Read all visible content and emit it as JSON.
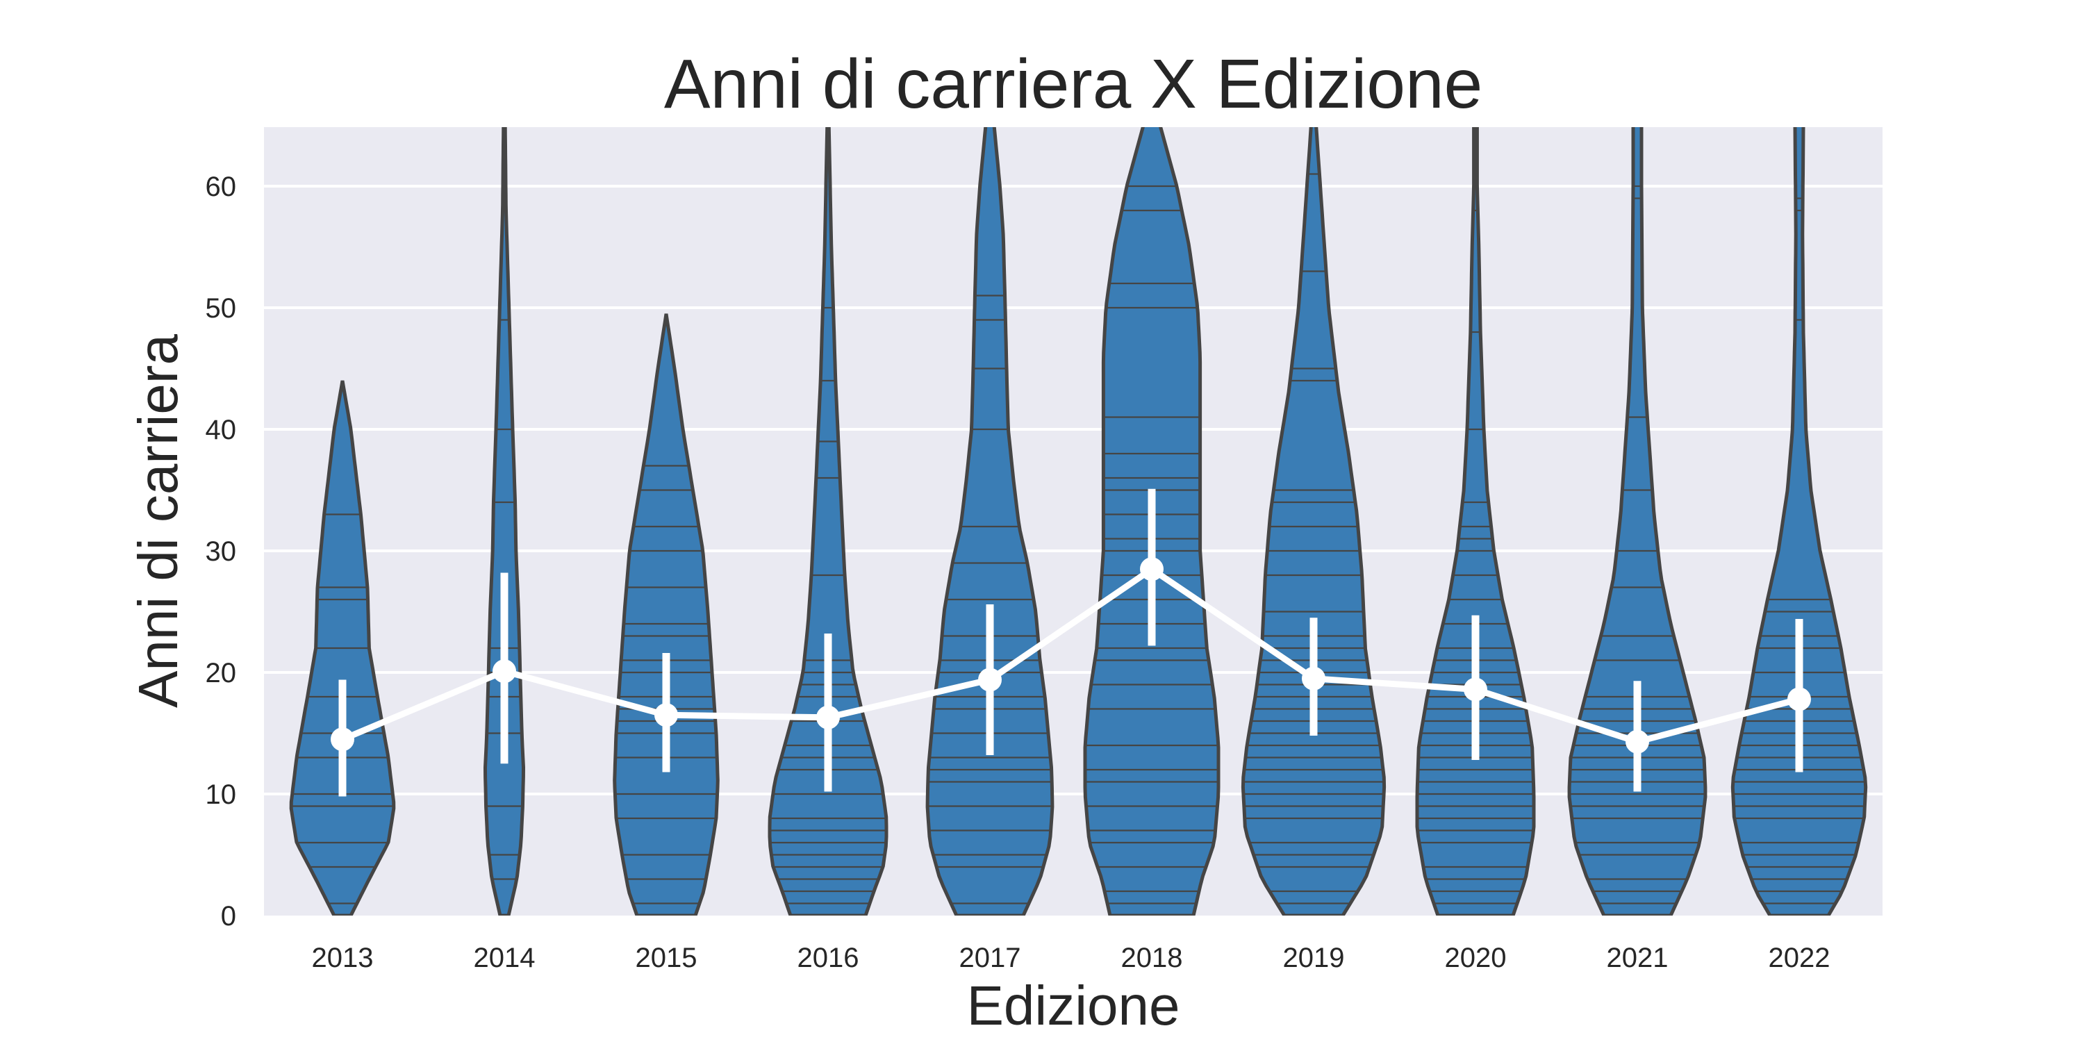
{
  "chart_data": {
    "type": "violin",
    "title": "Anni di carriera X Edizione",
    "xlabel": "Edizione",
    "ylabel": "Anni di carriera",
    "categories": [
      "2013",
      "2014",
      "2015",
      "2016",
      "2017",
      "2018",
      "2019",
      "2020",
      "2021",
      "2022"
    ],
    "ylim": [
      0,
      65
    ],
    "yticks": [
      0,
      10,
      20,
      30,
      40,
      50,
      60
    ],
    "grid": true,
    "colors": {
      "background": "#eaeaf2",
      "violin": "#3a7db5",
      "outline": "#454545",
      "mean": "#ffffff"
    },
    "violins": [
      {
        "max": 44,
        "profile": [
          [
            0,
            0.1
          ],
          [
            3,
            0.32
          ],
          [
            6,
            0.55
          ],
          [
            9,
            0.62
          ],
          [
            13,
            0.55
          ],
          [
            18,
            0.42
          ],
          [
            22,
            0.32
          ],
          [
            27,
            0.3
          ],
          [
            33,
            0.22
          ],
          [
            40,
            0.1
          ],
          [
            44,
            0.0
          ]
        ],
        "sticks": [
          1,
          4,
          6,
          9,
          10,
          13,
          15,
          18,
          22,
          26,
          27,
          33
        ]
      },
      {
        "max": 65,
        "profile": [
          [
            0,
            0.05
          ],
          [
            3,
            0.15
          ],
          [
            6,
            0.2
          ],
          [
            9,
            0.22
          ],
          [
            12,
            0.23
          ],
          [
            15,
            0.21
          ],
          [
            20,
            0.19
          ],
          [
            25,
            0.17
          ],
          [
            30,
            0.14
          ],
          [
            34,
            0.13
          ],
          [
            40,
            0.1
          ],
          [
            49,
            0.06
          ],
          [
            58,
            0.02
          ],
          [
            65,
            0.01
          ]
        ],
        "sticks": [
          0,
          3,
          5,
          9,
          15,
          18,
          20,
          22,
          34,
          40,
          49
        ]
      },
      {
        "max": 49.5,
        "profile": [
          [
            0,
            0.35
          ],
          [
            2,
            0.45
          ],
          [
            5,
            0.53
          ],
          [
            8,
            0.6
          ],
          [
            11,
            0.62
          ],
          [
            15,
            0.6
          ],
          [
            20,
            0.55
          ],
          [
            25,
            0.5
          ],
          [
            30,
            0.44
          ],
          [
            35,
            0.32
          ],
          [
            40,
            0.2
          ],
          [
            45,
            0.1
          ],
          [
            49.5,
            0.0
          ]
        ],
        "sticks": [
          1,
          3,
          5,
          8,
          10,
          13,
          15,
          16,
          17,
          18,
          20,
          21,
          23,
          24,
          27,
          30,
          32,
          35,
          37
        ]
      },
      {
        "max": 65,
        "profile": [
          [
            0,
            0.45
          ],
          [
            2,
            0.55
          ],
          [
            4,
            0.66
          ],
          [
            6,
            0.7
          ],
          [
            8,
            0.7
          ],
          [
            11,
            0.64
          ],
          [
            14,
            0.52
          ],
          [
            17,
            0.4
          ],
          [
            20,
            0.3
          ],
          [
            24,
            0.24
          ],
          [
            28,
            0.2
          ],
          [
            35,
            0.15
          ],
          [
            44,
            0.09
          ],
          [
            55,
            0.04
          ],
          [
            65,
            0.01
          ]
        ],
        "sticks": [
          1,
          2,
          3,
          4,
          5,
          6,
          7,
          8,
          10,
          12,
          13,
          14,
          16,
          18,
          19,
          20,
          21,
          28,
          36,
          39,
          44,
          50
        ]
      },
      {
        "max": 65,
        "profile": [
          [
            0,
            0.4
          ],
          [
            3,
            0.6
          ],
          [
            6,
            0.72
          ],
          [
            9,
            0.75
          ],
          [
            12,
            0.74
          ],
          [
            15,
            0.7
          ],
          [
            18,
            0.66
          ],
          [
            21,
            0.6
          ],
          [
            25,
            0.55
          ],
          [
            29,
            0.45
          ],
          [
            32,
            0.35
          ],
          [
            36,
            0.28
          ],
          [
            40,
            0.22
          ],
          [
            45,
            0.2
          ],
          [
            51,
            0.18
          ],
          [
            56,
            0.16
          ],
          [
            60,
            0.12
          ],
          [
            65,
            0.05
          ]
        ],
        "sticks": [
          1,
          4,
          5,
          7,
          9,
          11,
          12,
          13,
          15,
          17,
          18,
          20,
          21,
          23,
          26,
          29,
          32,
          40,
          45,
          49,
          51
        ]
      },
      {
        "max": 65,
        "profile": [
          [
            0,
            0.5
          ],
          [
            3,
            0.6
          ],
          [
            6,
            0.75
          ],
          [
            10,
            0.8
          ],
          [
            14,
            0.8
          ],
          [
            18,
            0.75
          ],
          [
            22,
            0.66
          ],
          [
            26,
            0.62
          ],
          [
            30,
            0.58
          ],
          [
            34,
            0.58
          ],
          [
            38,
            0.58
          ],
          [
            42,
            0.58
          ],
          [
            46,
            0.58
          ],
          [
            50,
            0.55
          ],
          [
            55,
            0.45
          ],
          [
            60,
            0.3
          ],
          [
            65,
            0.1
          ]
        ],
        "sticks": [
          1,
          2,
          4,
          6,
          7,
          9,
          11,
          12,
          14,
          17,
          19,
          21,
          22,
          24,
          26,
          28,
          30,
          31,
          33,
          35,
          36,
          38,
          41,
          50,
          52,
          58,
          60
        ]
      },
      {
        "max": 65,
        "profile": [
          [
            0,
            0.35
          ],
          [
            3,
            0.62
          ],
          [
            7,
            0.82
          ],
          [
            11,
            0.85
          ],
          [
            14,
            0.8
          ],
          [
            18,
            0.7
          ],
          [
            22,
            0.62
          ],
          [
            28,
            0.58
          ],
          [
            33,
            0.52
          ],
          [
            38,
            0.42
          ],
          [
            43,
            0.3
          ],
          [
            50,
            0.18
          ],
          [
            56,
            0.12
          ],
          [
            62,
            0.06
          ],
          [
            65,
            0.03
          ]
        ],
        "sticks": [
          1,
          2,
          4,
          5,
          6,
          8,
          9,
          10,
          11,
          12,
          13,
          14,
          15,
          16,
          17,
          18,
          19,
          20,
          21,
          22,
          23,
          25,
          28,
          30,
          32,
          34,
          35,
          44,
          45,
          53,
          61
        ]
      },
      {
        "max": 65,
        "profile": [
          [
            0,
            0.45
          ],
          [
            3,
            0.6
          ],
          [
            7,
            0.7
          ],
          [
            10,
            0.7
          ],
          [
            14,
            0.68
          ],
          [
            18,
            0.58
          ],
          [
            22,
            0.46
          ],
          [
            26,
            0.32
          ],
          [
            30,
            0.22
          ],
          [
            35,
            0.14
          ],
          [
            40,
            0.1
          ],
          [
            48,
            0.06
          ],
          [
            55,
            0.04
          ],
          [
            60,
            0.02
          ],
          [
            65,
            0.02
          ]
        ],
        "sticks": [
          1,
          2,
          3,
          4,
          6,
          7,
          8,
          9,
          10,
          11,
          12,
          13,
          14,
          15,
          16,
          17,
          18,
          19,
          20,
          21,
          22,
          24,
          26,
          28,
          30,
          31,
          32,
          34,
          40,
          48,
          58
        ]
      },
      {
        "max": 65,
        "profile": [
          [
            0,
            0.4
          ],
          [
            3,
            0.6
          ],
          [
            6,
            0.75
          ],
          [
            10,
            0.82
          ],
          [
            13,
            0.8
          ],
          [
            16,
            0.7
          ],
          [
            20,
            0.55
          ],
          [
            24,
            0.4
          ],
          [
            28,
            0.28
          ],
          [
            33,
            0.2
          ],
          [
            38,
            0.15
          ],
          [
            43,
            0.1
          ],
          [
            50,
            0.06
          ],
          [
            60,
            0.05
          ],
          [
            65,
            0.05
          ]
        ],
        "sticks": [
          1,
          2,
          3,
          5,
          6,
          8,
          9,
          10,
          11,
          12,
          13,
          14,
          15,
          16,
          17,
          18,
          21,
          23,
          27,
          30,
          35,
          41,
          59,
          60
        ]
      },
      {
        "max": 65,
        "profile": [
          [
            0,
            0.35
          ],
          [
            2,
            0.52
          ],
          [
            5,
            0.68
          ],
          [
            8,
            0.78
          ],
          [
            11,
            0.8
          ],
          [
            14,
            0.72
          ],
          [
            18,
            0.6
          ],
          [
            22,
            0.5
          ],
          [
            26,
            0.38
          ],
          [
            30,
            0.25
          ],
          [
            35,
            0.14
          ],
          [
            40,
            0.08
          ],
          [
            48,
            0.05
          ],
          [
            56,
            0.04
          ],
          [
            65,
            0.05
          ]
        ],
        "sticks": [
          1,
          2,
          3,
          4,
          5,
          6,
          8,
          9,
          10,
          11,
          12,
          13,
          14,
          15,
          16,
          17,
          18,
          20,
          22,
          23,
          25,
          26,
          49,
          58,
          59
        ]
      }
    ],
    "series": [
      {
        "type": "pointplot",
        "estimator": "mean",
        "values": [
          14.5,
          20.1,
          16.5,
          16.3,
          19.4,
          28.5,
          19.5,
          18.6,
          14.3,
          17.8
        ],
        "ci_low": [
          9.8,
          12.5,
          11.8,
          10.2,
          13.2,
          22.2,
          14.8,
          12.8,
          10.2,
          11.8
        ],
        "ci_high": [
          19.4,
          28.2,
          21.6,
          23.2,
          25.6,
          35.1,
          24.5,
          24.7,
          19.3,
          24.4
        ]
      }
    ]
  }
}
